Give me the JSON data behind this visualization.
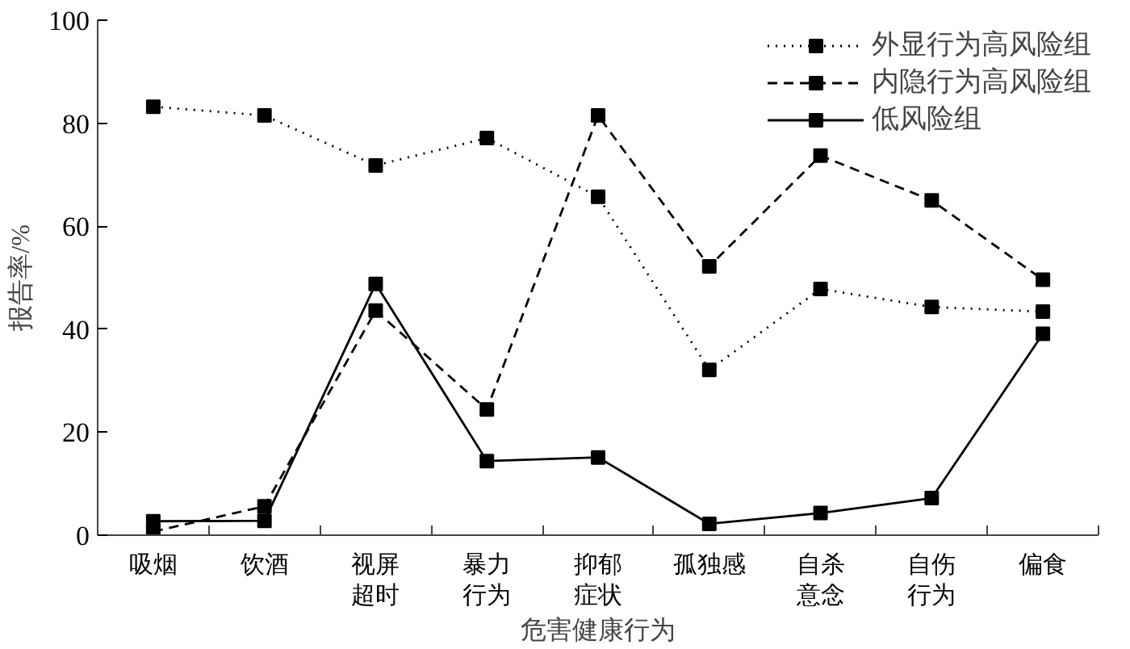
{
  "chart_data": {
    "type": "line",
    "xlabel": "危害健康行为",
    "ylabel": "报告率/%",
    "categories": [
      "吸烟",
      "饮酒",
      "视屏超时",
      "暴力行为",
      "抑郁症状",
      "孤独感",
      "自杀意念",
      "自伤行为",
      "偏食"
    ],
    "series": [
      {
        "name": "外显行为高风险组",
        "color": "#000000",
        "line_style": "dotted",
        "values": [
          83.2,
          81.5,
          71.8,
          77.1,
          65.7,
          32.1,
          47.8,
          44.3,
          43.4
        ]
      },
      {
        "name": "内隐行为高风险组",
        "color": "#000000",
        "line_style": "dashed",
        "values": [
          0.7,
          5.6,
          43.6,
          24.4,
          81.5,
          52.2,
          73.7,
          65.0,
          49.6
        ]
      },
      {
        "name": "低风险组",
        "color": "#000000",
        "line_style": "solid",
        "values": [
          2.7,
          2.8,
          48.8,
          14.4,
          15.1,
          2.2,
          4.3,
          7.2,
          39.1
        ]
      }
    ],
    "ylim": [
      0,
      100
    ],
    "yticks": [
      0,
      20,
      40,
      60,
      80,
      100
    ],
    "marker": "square",
    "grid": false,
    "legend": "top right"
  }
}
